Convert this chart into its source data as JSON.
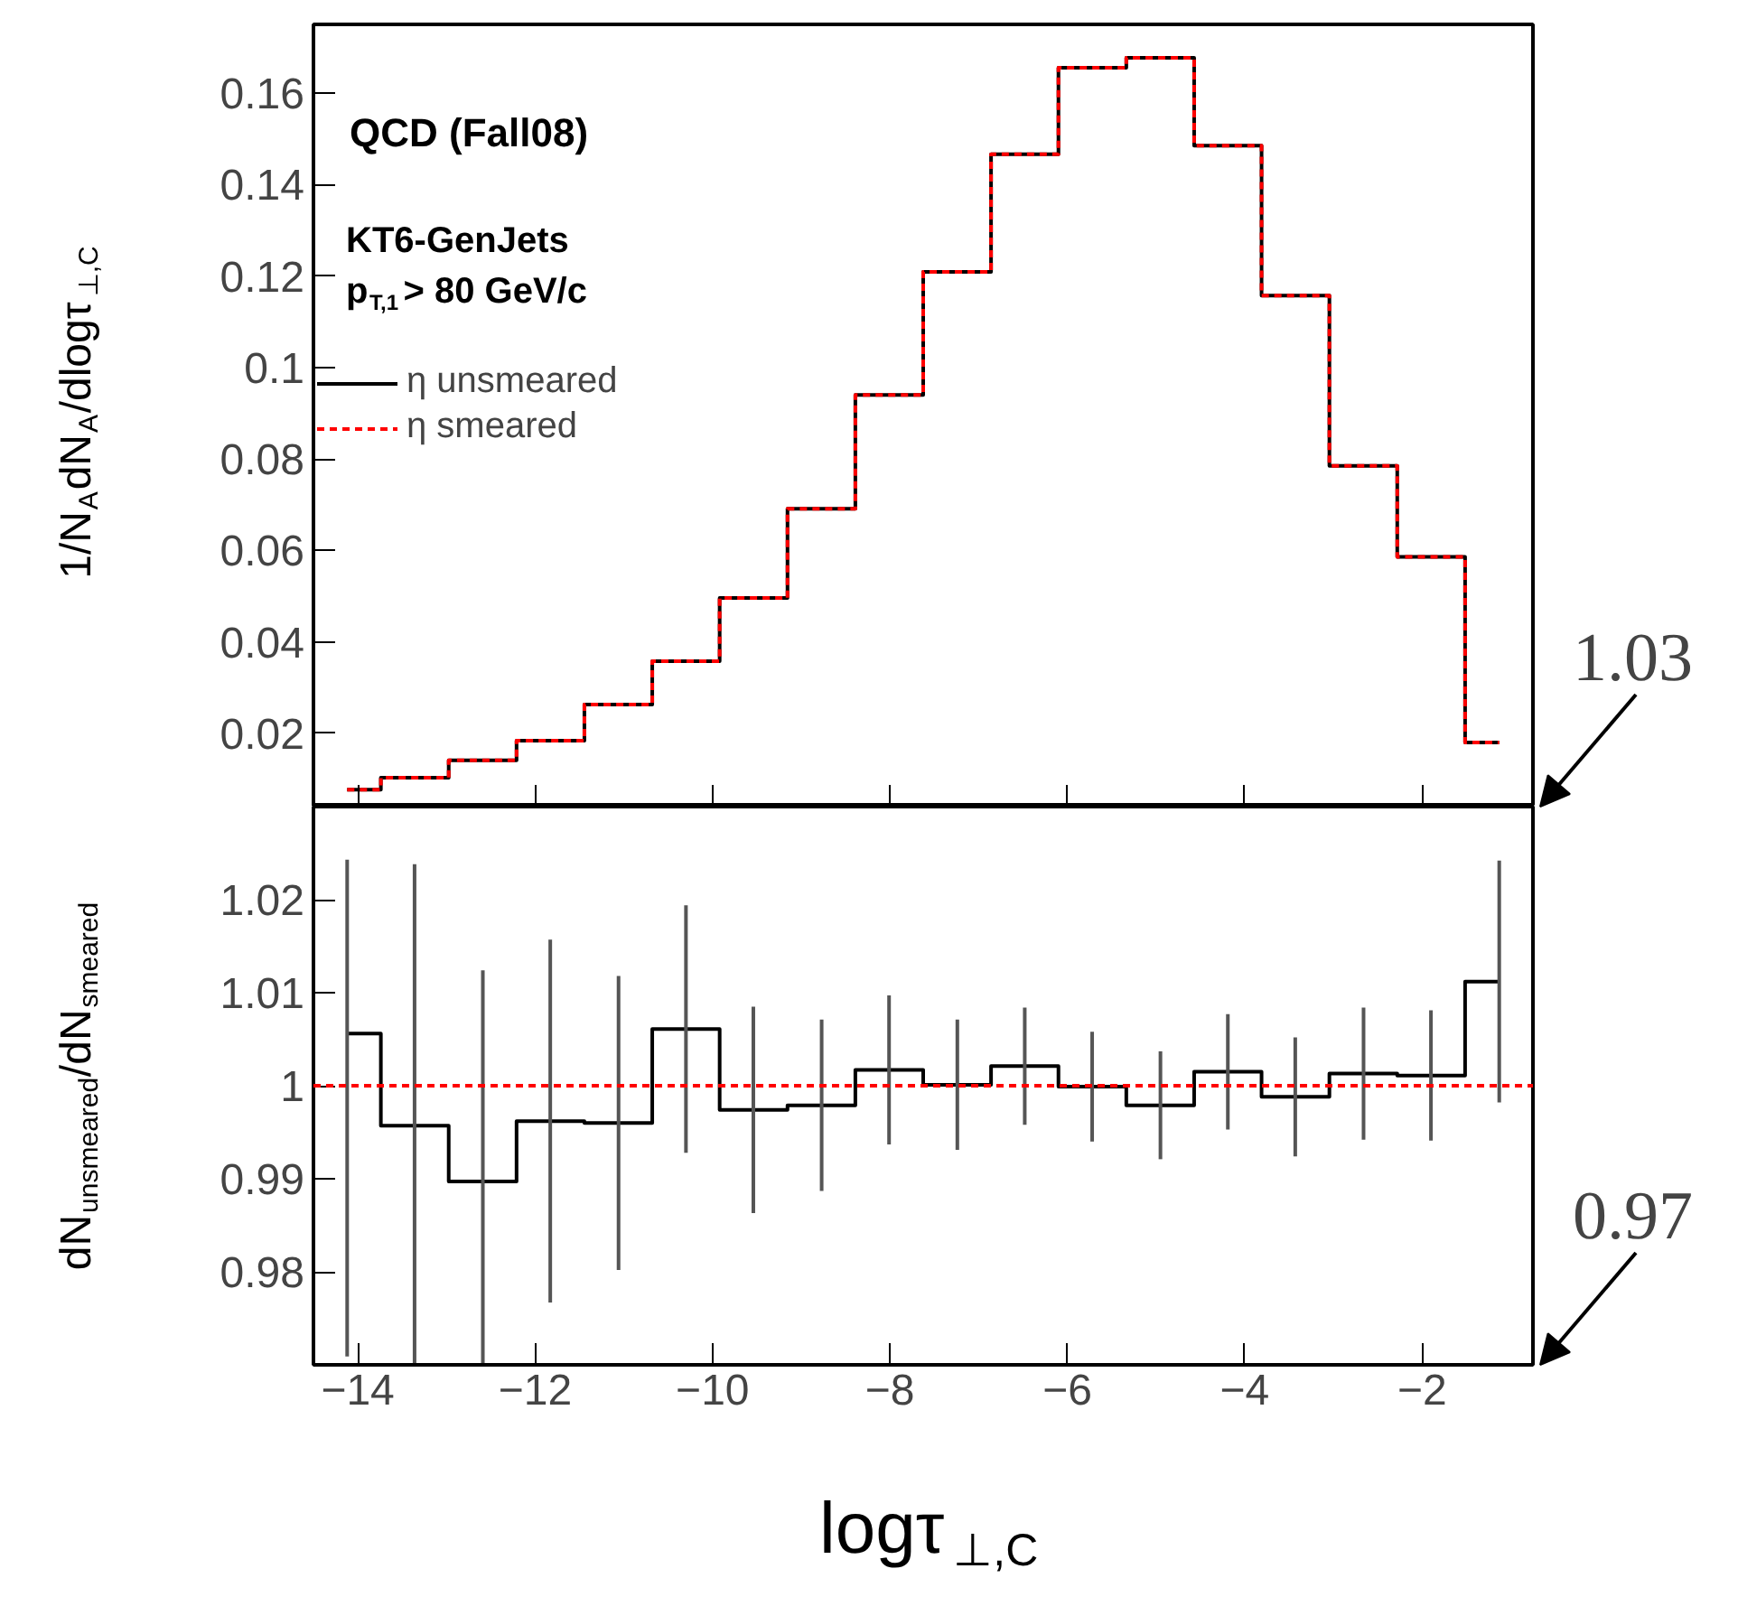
{
  "chart_data": [
    {
      "type": "step",
      "title": "QCD (Fall08)",
      "ylabel": "1/N$_{A}$dN$_{A}$/dlogτ$_{⊥,C}$",
      "annotations": [
        "KT6-GenJets",
        "p$_{T,1}$> 80 GeV/c"
      ],
      "x": [
        -14.12,
        -13.36,
        -12.59,
        -11.83,
        -11.06,
        -10.3,
        -9.54,
        -8.77,
        -8.01,
        -7.24,
        -6.48,
        -5.72,
        -4.95,
        -4.19,
        -3.43,
        -2.66,
        -1.9,
        -1.13
      ],
      "series": [
        {
          "name": "η unsmeared",
          "color": "#000000",
          "line_style": "solid",
          "values": [
            0.0077,
            0.0103,
            0.0141,
            0.0184,
            0.0263,
            0.0358,
            0.0496,
            0.0691,
            0.094,
            0.1209,
            0.1466,
            0.1655,
            0.1677,
            0.1485,
            0.1157,
            0.0785,
            0.0586,
            0.018
          ]
        },
        {
          "name": "η smeared",
          "color": "#ff0000",
          "line_style": "dashed",
          "values": [
            0.0077,
            0.0103,
            0.0141,
            0.0184,
            0.0263,
            0.0358,
            0.0496,
            0.0691,
            0.094,
            0.1209,
            0.1466,
            0.1655,
            0.1677,
            0.1485,
            0.1157,
            0.0785,
            0.0586,
            0.018
          ]
        }
      ],
      "xlim": [
        -14.5,
        -0.75
      ],
      "ylim": [
        0.004,
        0.175
      ],
      "yticks": [
        0.02,
        0.04,
        0.06,
        0.08,
        0.1,
        0.12,
        0.14,
        0.16
      ],
      "tick_labels": "y",
      "legend": "top left",
      "grid": false
    },
    {
      "type": "step",
      "xlabel": "logτ$_{⊥,C}$",
      "ylabel": "dN$_{unsmeared}$/dN$_{smeared}$",
      "x": [
        -14.12,
        -13.36,
        -12.59,
        -11.83,
        -11.06,
        -10.3,
        -9.54,
        -8.77,
        -8.01,
        -7.24,
        -6.48,
        -5.72,
        -4.95,
        -4.19,
        -3.43,
        -2.66,
        -1.9,
        -1.13
      ],
      "values": [
        1.0056,
        0.9957,
        0.9897,
        0.9962,
        0.996,
        1.0061,
        0.9974,
        0.9979,
        1.0017,
        1.0001,
        1.0021,
        0.9999,
        0.9979,
        1.0015,
        0.9988,
        1.0013,
        1.0011,
        1.0112
      ],
      "errors": [
        [
          0.9709,
          1.0243
        ],
        [
          0.97,
          1.0238
        ],
        [
          0.97,
          1.0124
        ],
        0.0195,
        0.0158,
        0.0133,
        0.0111,
        0.0092,
        0.008,
        0.007,
        0.0063,
        0.0059,
        0.0058,
        0.0062,
        0.0064,
        0.0071,
        0.007,
        0.013
      ],
      "color": "#000000",
      "ref_lines": [
        {
          "axis": "y",
          "value": 1,
          "color": "#ff0000",
          "line_style": "dashed"
        }
      ],
      "annotations": [
        "1.03",
        "0.97"
      ],
      "xlim": [
        -14.5,
        -0.75
      ],
      "ylim": [
        0.97,
        1.03
      ],
      "xticks": [
        -14,
        -12,
        -10,
        -8,
        -6,
        -4,
        -2
      ],
      "yticks": [
        0.98,
        0.99,
        1,
        1.01,
        1.02
      ],
      "grid": false
    }
  ]
}
